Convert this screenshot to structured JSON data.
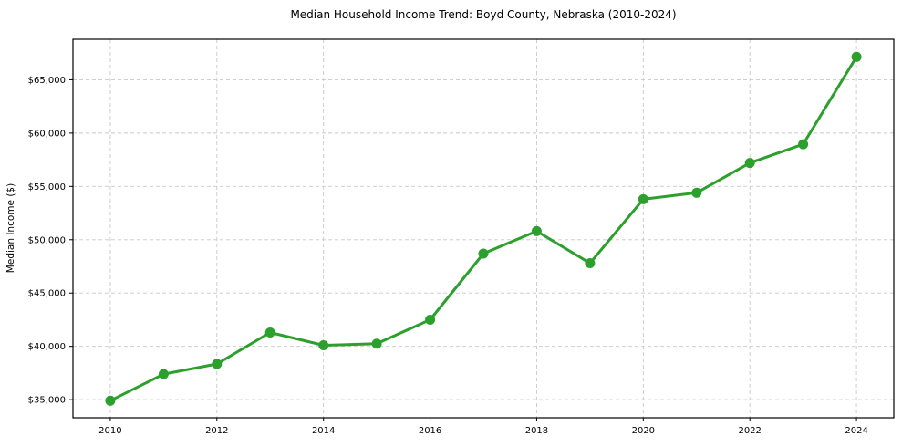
{
  "chart_data": {
    "type": "line",
    "title": "Median Household Income Trend: Boyd County, Nebraska (2010-2024)",
    "xlabel": "",
    "ylabel": "Median Income ($)",
    "x": [
      2010,
      2011,
      2012,
      2013,
      2014,
      2015,
      2016,
      2017,
      2018,
      2019,
      2020,
      2021,
      2022,
      2023,
      2024
    ],
    "values": [
      34900,
      37400,
      38350,
      41300,
      40100,
      40250,
      42500,
      48700,
      50800,
      47800,
      53800,
      54400,
      57200,
      58950,
      67150
    ],
    "xlim": [
      2009.3,
      2024.7
    ],
    "ylim": [
      33300,
      68800
    ],
    "xticks": [
      2010,
      2012,
      2014,
      2016,
      2018,
      2020,
      2022,
      2024
    ],
    "xtick_labels": [
      "2010",
      "2012",
      "2014",
      "2016",
      "2018",
      "2020",
      "2022",
      "2024"
    ],
    "yticks": [
      35000,
      40000,
      45000,
      50000,
      55000,
      60000,
      65000
    ],
    "ytick_labels": [
      "$35,000",
      "$40,000",
      "$45,000",
      "$50,000",
      "$55,000",
      "$60,000",
      "$65,000"
    ],
    "grid": true,
    "grid_style": "dashed",
    "legend_position": "none",
    "colors": {
      "line": "#2ca02c",
      "marker": "#2ca02c",
      "grid": "#c8c8c8",
      "spine": "#000000",
      "text": "#000000",
      "background": "#ffffff"
    }
  }
}
